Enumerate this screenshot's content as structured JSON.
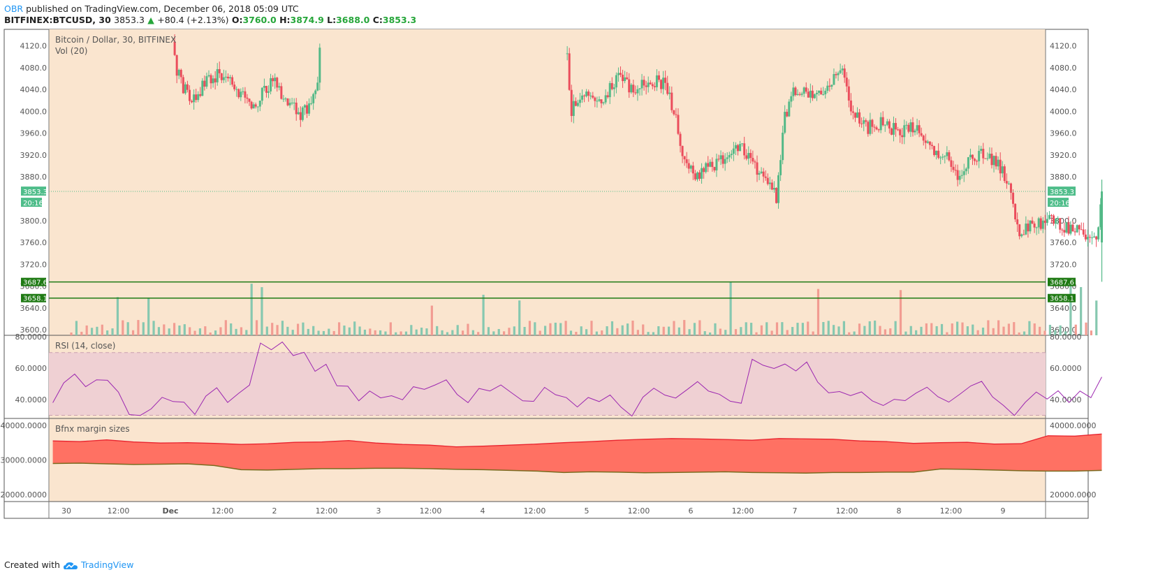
{
  "header": {
    "user": "OBR",
    "published_text": "published on TradingView.com, December 06, 2018 05:09 UTC",
    "symbol": "BITFINEX:BTCUSD, 30",
    "last": "3853.3",
    "change": "+80.4 (+2.13%)",
    "open_label": "O:",
    "open": "3760.0",
    "high_label": "H:",
    "high": "3874.9",
    "low_label": "L:",
    "low": "3688.0",
    "close_label": "C:",
    "close": "3853.3"
  },
  "footer": {
    "created_with": "Created with",
    "brand": "TradingView"
  },
  "colors": {
    "main_bg": "#fae5cf",
    "up": "#53b987",
    "down": "#eb4d5c",
    "vol_up": "#86c8b0",
    "vol_down": "#f29c92",
    "rsi_line": "#9c27b0",
    "rsi_band": "#efd0d3",
    "margin_fill": "#ff7163",
    "margin_top": "#e8242f",
    "margin_bottom": "#7a6a1e",
    "level_line": "#1f7a14",
    "last_price": "#4fbd8a",
    "axis_text": "#555555"
  },
  "chart_data": {
    "type": "candlestick",
    "title": "Bitcoin / Dollar, 30, BITFINEX",
    "volume_label": "Vol (20)",
    "x_ticks": [
      "30",
      "12:00",
      "Dec",
      "12:00",
      "2",
      "12:00",
      "3",
      "12:00",
      "4",
      "12:00",
      "5",
      "12:00",
      "6",
      "12:00",
      "7",
      "12:00",
      "8",
      "12:00",
      "9"
    ],
    "price_ticks": [
      "4120.0",
      "4080.0",
      "4040.0",
      "4000.0",
      "3960.0",
      "3920.0",
      "3880.0",
      "3800.0",
      "3760.0",
      "3720.0",
      "3680.0",
      "3640.0",
      "3600.0"
    ],
    "price_range": [
      3590,
      4150
    ],
    "last_price_label": "3853.3",
    "countdown_label": "20:16",
    "levels": [
      {
        "label": "3687.6"
      },
      {
        "label": "3658.1"
      }
    ],
    "price_path": [
      {
        "x": 0.5,
        "p": null
      },
      {
        "x": 1.0,
        "p": 4150
      },
      {
        "x": 1.05,
        "p": 4080
      },
      {
        "x": 1.2,
        "p": 4010
      },
      {
        "x": 1.35,
        "p": 4060
      },
      {
        "x": 1.5,
        "p": 4070
      },
      {
        "x": 1.65,
        "p": 4040
      },
      {
        "x": 1.8,
        "p": 4000
      },
      {
        "x": 1.9,
        "p": 4040
      },
      {
        "x": 2.0,
        "p": 4060
      },
      {
        "x": 2.1,
        "p": 4020
      },
      {
        "x": 2.25,
        "p": 3995
      },
      {
        "x": 2.35,
        "p": 4010
      },
      {
        "x": 2.42,
        "p": 4060
      },
      {
        "x": 2.45,
        "p": 4150
      },
      {
        "x": 4.8,
        "p": 4150
      },
      {
        "x": 4.85,
        "p": 4000
      },
      {
        "x": 5.0,
        "p": 4040
      },
      {
        "x": 5.15,
        "p": 4020
      },
      {
        "x": 5.3,
        "p": 4060
      },
      {
        "x": 5.45,
        "p": 4040
      },
      {
        "x": 5.6,
        "p": 4060
      },
      {
        "x": 5.75,
        "p": 4050
      },
      {
        "x": 5.85,
        "p": 3990
      },
      {
        "x": 5.95,
        "p": 3900
      },
      {
        "x": 6.05,
        "p": 3880
      },
      {
        "x": 6.2,
        "p": 3900
      },
      {
        "x": 6.35,
        "p": 3920
      },
      {
        "x": 6.5,
        "p": 3935
      },
      {
        "x": 6.62,
        "p": 3900
      },
      {
        "x": 6.72,
        "p": 3880
      },
      {
        "x": 6.82,
        "p": 3840
      },
      {
        "x": 6.9,
        "p": 3990
      },
      {
        "x": 7.0,
        "p": 4040
      },
      {
        "x": 7.15,
        "p": 4030
      },
      {
        "x": 7.3,
        "p": 4040
      },
      {
        "x": 7.45,
        "p": 4090
      },
      {
        "x": 7.55,
        "p": 4000
      },
      {
        "x": 7.7,
        "p": 3970
      },
      {
        "x": 7.85,
        "p": 3980
      },
      {
        "x": 8.0,
        "p": 3960
      },
      {
        "x": 8.15,
        "p": 3975
      },
      {
        "x": 8.3,
        "p": 3930
      },
      {
        "x": 8.45,
        "p": 3920
      },
      {
        "x": 8.55,
        "p": 3880
      },
      {
        "x": 8.7,
        "p": 3920
      },
      {
        "x": 8.85,
        "p": 3925
      },
      {
        "x": 8.95,
        "p": 3900
      },
      {
        "x": 9.05,
        "p": 3870
      },
      {
        "x": 9.15,
        "p": 3780
      },
      {
        "x": 9.3,
        "p": 3790
      },
      {
        "x": 9.45,
        "p": 3800
      },
      {
        "x": 9.6,
        "p": 3790
      },
      {
        "x": 9.75,
        "p": 3780
      },
      {
        "x": 9.9,
        "p": 3770
      },
      {
        "x": 9.95,
        "p": 3853
      }
    ],
    "rsi": {
      "label": "RSI (14, close)",
      "ticks": [
        "80.0000",
        "60.0000",
        "40.0000"
      ],
      "range": [
        28,
        81
      ],
      "band": [
        30,
        70
      ],
      "points": [
        40,
        52,
        55,
        48,
        54,
        52,
        45,
        32,
        30,
        36,
        42,
        38,
        40,
        32,
        44,
        46,
        40,
        42,
        50,
        78,
        72,
        75,
        68,
        70,
        58,
        62,
        48,
        50,
        40,
        46,
        42,
        44,
        40,
        48,
        46,
        50,
        52,
        44,
        40,
        48,
        46,
        50,
        44,
        40,
        38,
        46,
        42,
        40,
        36,
        40,
        38,
        42,
        34,
        30,
        40,
        46,
        44,
        40,
        48,
        50,
        46,
        42,
        38,
        36,
        66,
        62,
        60,
        62,
        58,
        64,
        50,
        44,
        46,
        42,
        46,
        40,
        38,
        42,
        40,
        44,
        46,
        42,
        38,
        44,
        48,
        50,
        42,
        36,
        30,
        40,
        44,
        42,
        46,
        40,
        44,
        42,
        56
      ]
    },
    "margin": {
      "label": "Bfnx margin sizes",
      "ticks": [
        "40000.0000",
        "30000.0000",
        "20000.0000"
      ],
      "range": [
        18000,
        42000
      ],
      "top": [
        35500,
        35300,
        35800,
        35200,
        34900,
        35000,
        34800,
        34500,
        34700,
        35100,
        35200,
        35600,
        34900,
        34500,
        34300,
        33800,
        34000,
        34300,
        34600,
        35000,
        35300,
        35700,
        36000,
        36200,
        36100,
        35900,
        35700,
        36200,
        36100,
        36000,
        35500,
        35300,
        34800,
        35000,
        35100,
        34600,
        34700,
        37000,
        36900,
        37500
      ],
      "bottom": [
        29000,
        29100,
        28900,
        28700,
        28800,
        28900,
        28400,
        27200,
        27100,
        27300,
        27500,
        27500,
        27600,
        27600,
        27500,
        27300,
        27200,
        27000,
        26800,
        26400,
        26600,
        26500,
        26300,
        26400,
        26500,
        26600,
        26400,
        26300,
        26200,
        26400,
        26400,
        26500,
        26500,
        27400,
        27300,
        27100,
        26900,
        26800,
        26800,
        27000
      ]
    }
  }
}
